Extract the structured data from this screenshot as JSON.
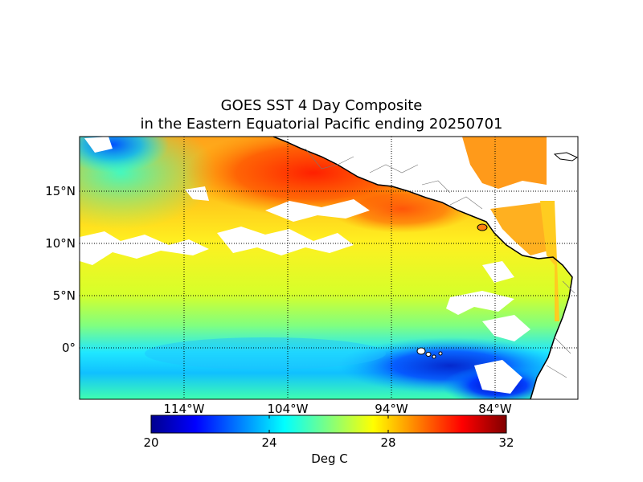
{
  "title": {
    "line1": "GOES SST 4 Day Composite",
    "line2": "in the Eastern Equatorial Pacific ending 20250701"
  },
  "map": {
    "lon_range": [
      -124,
      -76
    ],
    "lat_range": [
      -5,
      20
    ],
    "gridlines": true,
    "lat_labels": [
      "15°N",
      "10°N",
      "5°N",
      "0°"
    ],
    "lon_labels": [
      "114°W",
      "104°W",
      "94°W",
      "84°W"
    ],
    "land_color": "#ffffff",
    "coastline_color": "#000000"
  },
  "colorbar": {
    "min": 20,
    "max": 32,
    "ticks": [
      "20",
      "24",
      "28",
      "32"
    ],
    "label": "Deg C",
    "colormap": "jet"
  },
  "chart_data": {
    "type": "heatmap",
    "title": "GOES SST 4 Day Composite in the Eastern Equatorial Pacific ending 20250701",
    "variable": "sea surface temperature",
    "units": "Deg C",
    "value_range": [
      20,
      32
    ],
    "approx_regions": [
      {
        "region": "coastal waters off southern Mexico (15-20N, 104-96W)",
        "value": 30.5
      },
      {
        "region": "Gulf of Tehuantepec (14N, 95W)",
        "value": 30.5
      },
      {
        "region": "open ocean 10-15N",
        "value": 29.5
      },
      {
        "region": "open ocean 5-10N",
        "value": 28.5
      },
      {
        "region": "open ocean 0-5N",
        "value": 27
      },
      {
        "region": "equatorial cold tongue (0-3S)",
        "value": 25.5
      },
      {
        "region": "near Galapagos (1S, 91W)",
        "value": 23
      },
      {
        "region": "off Ecuador/Peru (3-5S, 85-81W)",
        "value": 21.5
      },
      {
        "region": "NW corner (19N, 123W)",
        "value": 24
      }
    ]
  }
}
